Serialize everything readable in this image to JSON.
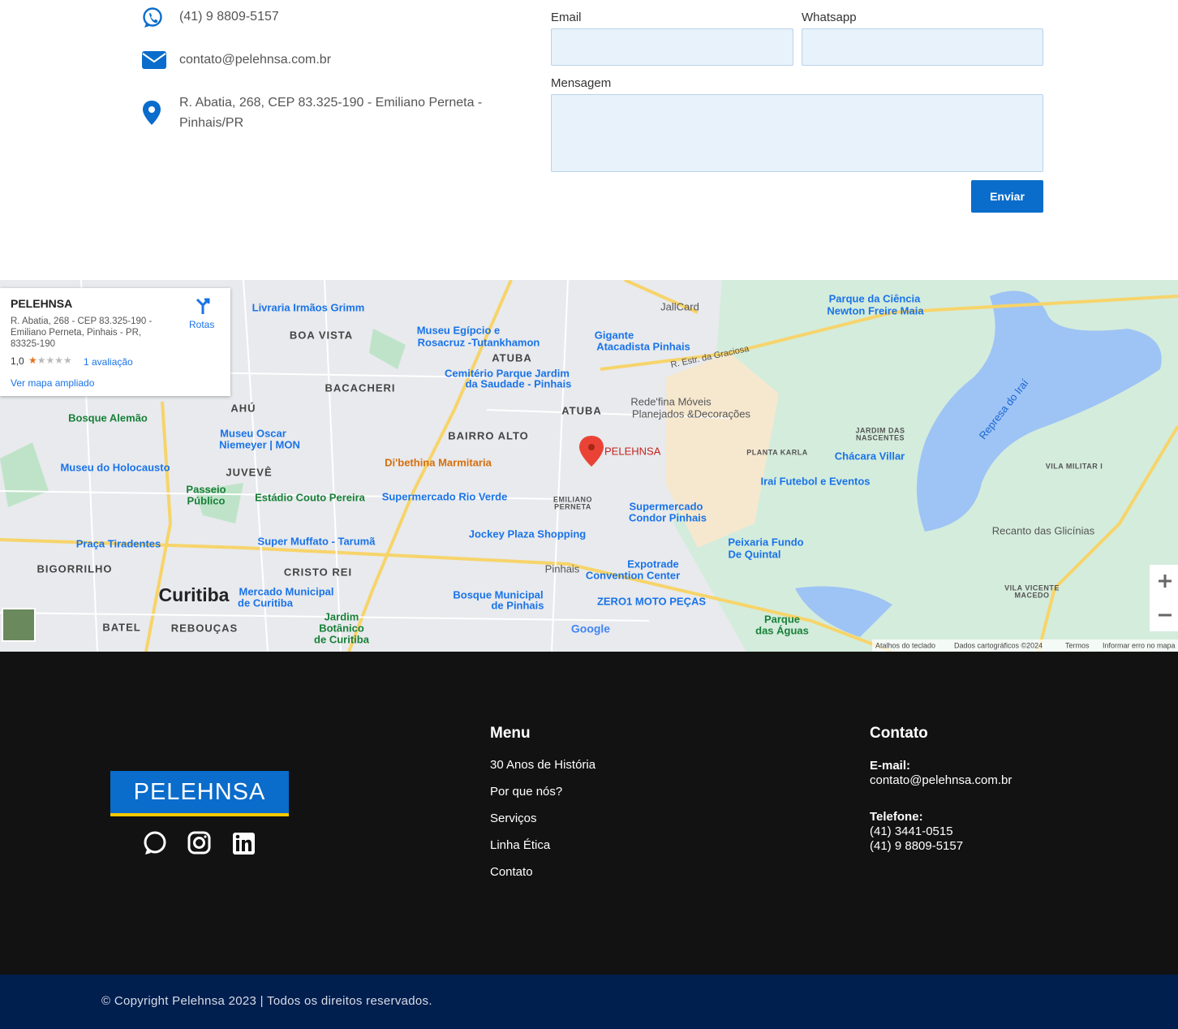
{
  "contact": {
    "phone": "(41) 9 8809-5157",
    "email": "contato@pelehnsa.com.br",
    "address": "R. Abatia, 268, CEP 83.325-190 - Emiliano Perneta - Pinhais/PR"
  },
  "form": {
    "email_label": "Email",
    "whatsapp_label": "Whatsapp",
    "message_label": "Mensagem",
    "submit": "Enviar"
  },
  "map": {
    "card": {
      "title": "PELEHNSA",
      "address_lines": [
        "R. Abatia, 268 - CEP 83.325-190 -",
        "Emiliano Perneta, Pinhais - PR,",
        "83325-190"
      ],
      "rating": "1,0",
      "reviews": "1 avaliação",
      "larger_map": "Ver mapa ampliado",
      "directions": "Rotas"
    },
    "marker": "PELEHNSA",
    "labels": [
      "Livraria Irmãos Grimm",
      "BOA VISTA",
      "Museu Egípcio e",
      "Rosacruz -Tutankhamon",
      "ATUBA",
      "Gigante",
      "Atacadista Pinhais",
      "JallCard",
      "Parque da Ciência",
      "Newton Freire Maia",
      "Cemitério Parque Jardim",
      "da Saudade - Pinhais",
      "BACACHERI",
      "AHÚ",
      "ATUBA",
      "Rede'fina Móveis",
      "Planejados &Decorações",
      "Bosque Alemão",
      "Museu Oscar",
      "Niemeyer | MON",
      "BAIRRO ALTO",
      "JARDIM DAS",
      "NASCENTES",
      "PLANTA KARLA",
      "Chácara Villar",
      "Represa do Iraí",
      "JUVEVÊ",
      "Museu do Holocausto",
      "Di'bethina Marmitaria",
      "VILA MILITAR I",
      "Iraí Futebol e Eventos",
      "Passeio",
      "Público",
      "Estádio Couto Pereira",
      "Supermercado Rio Verde",
      "EMILIANO",
      "PERNETA",
      "Supermercado",
      "Condor Pinhais",
      "Praça Tiradentes",
      "Super Muffato - Tarumã",
      "Jockey Plaza Shopping",
      "Peixaria Fundo",
      "De Quintal",
      "Recanto das Glicínias",
      "BIGORRILHO",
      "CRISTO REI",
      "Pinhais",
      "Expotrade",
      "Convention Center",
      "VILA VICENTE",
      "MACEDO",
      "Curitiba",
      "Mercado Municipal",
      "de Curitiba",
      "Bosque Municipal",
      "de Pinhais",
      "ZERO1 MOTO PEÇAS",
      "Jardim",
      "Botânico",
      "de Curitiba",
      "BATEL",
      "REBOUÇAS",
      "Parque",
      "das Águas",
      "R. Estr. da Graciosa",
      "Google"
    ],
    "footer": [
      "Atalhos do teclado",
      "Dados cartográficos ©2024",
      "Termos",
      "Informar erro no mapa"
    ]
  },
  "footer": {
    "logo": "PELEHNSA",
    "menu_title": "Menu",
    "menu": [
      "30 Anos de História",
      "Por que nós?",
      "Serviços",
      "Linha Ética",
      "Contato"
    ],
    "contact_title": "Contato",
    "email_label": "E-mail:",
    "email": "contato@pelehnsa.com.br",
    "phone_label": "Telefone:",
    "phones": [
      "(41) 3441-0515",
      "(41) 9 8809-5157"
    ]
  },
  "copyright": "© Copyright Pelehnsa 2023 | Todos os direitos reservados."
}
